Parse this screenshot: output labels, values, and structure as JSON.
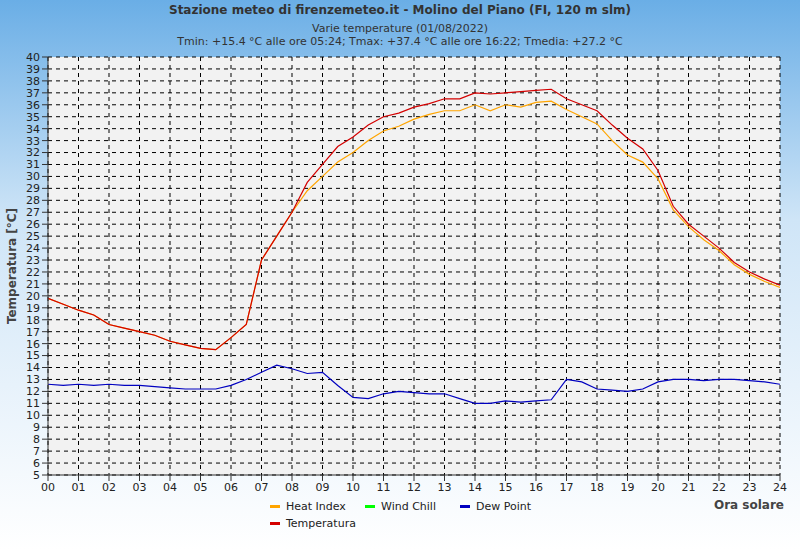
{
  "chart_data": {
    "type": "line",
    "title": "Stazione meteo di firenzemeteo.it - Molino del Piano (FI, 120 m slm)",
    "subtitle": [
      "Varie temperature (01/08/2022)",
      "Tmin: +15.4 °C alle ore 05:24; Tmax: +37.4 °C alle ore 16:22; Tmedia: +27.2 °C"
    ],
    "x_label": "Ora solare",
    "y_label": "Temperatura [°C]",
    "x": [
      0,
      0.5,
      1,
      1.5,
      2,
      2.5,
      3,
      3.5,
      4,
      4.5,
      5,
      5.5,
      6,
      6.5,
      7,
      7.5,
      8,
      8.5,
      9,
      9.5,
      10,
      10.5,
      11,
      11.5,
      12,
      12.5,
      13,
      13.5,
      14,
      14.5,
      15,
      15.5,
      16,
      16.5,
      17,
      17.5,
      18,
      18.5,
      19,
      19.5,
      20,
      20.5,
      21,
      21.5,
      22,
      22.5,
      23,
      23.5,
      24
    ],
    "series": [
      {
        "name": "Heat Index",
        "color": "#ffa500",
        "values": [
          19.8,
          19.3,
          18.8,
          18.4,
          17.6,
          17.3,
          17.0,
          16.7,
          16.2,
          15.9,
          15.6,
          15.5,
          16.5,
          17.6,
          23.0,
          25.0,
          27.0,
          28.8,
          30.0,
          31.2,
          32.0,
          33.0,
          33.8,
          34.2,
          34.8,
          35.2,
          35.5,
          35.5,
          36.0,
          35.5,
          36.0,
          35.8,
          36.2,
          36.3,
          35.6,
          35.0,
          34.4,
          33.0,
          31.8,
          31.2,
          29.8,
          27.2,
          25.8,
          24.7,
          23.8,
          22.6,
          21.8,
          21.2,
          20.7
        ]
      },
      {
        "name": "Wind Chill",
        "color": "#00ff00",
        "values": [
          null,
          null,
          null,
          null,
          null,
          null,
          null,
          null,
          null,
          null,
          null,
          null,
          null,
          null,
          null,
          null,
          null,
          null,
          null,
          null,
          null,
          null,
          null,
          null,
          null,
          null,
          null,
          null,
          null,
          null,
          null,
          null,
          null,
          null,
          null,
          null,
          null,
          null,
          null,
          null,
          null,
          null,
          null,
          null,
          null,
          null,
          null,
          null,
          null
        ]
      },
      {
        "name": "Dew Point",
        "color": "#0000c0",
        "values": [
          12.6,
          12.5,
          12.6,
          12.5,
          12.6,
          12.5,
          12.5,
          12.4,
          12.3,
          12.2,
          12.2,
          12.2,
          12.5,
          13.0,
          13.6,
          14.2,
          13.9,
          13.5,
          13.6,
          12.5,
          11.5,
          11.4,
          11.8,
          12.0,
          11.9,
          11.8,
          11.8,
          11.4,
          11.0,
          11.0,
          11.2,
          11.1,
          11.2,
          11.3,
          13.0,
          12.8,
          12.2,
          12.1,
          12.0,
          12.2,
          12.8,
          13.0,
          13.0,
          12.9,
          13.0,
          13.0,
          12.9,
          12.8,
          12.6
        ]
      },
      {
        "name": "Temperatura",
        "color": "#d40000",
        "values": [
          19.8,
          19.3,
          18.8,
          18.4,
          17.6,
          17.3,
          17.0,
          16.7,
          16.2,
          15.9,
          15.6,
          15.5,
          16.5,
          17.6,
          23.0,
          25.0,
          27.0,
          29.5,
          31.0,
          32.5,
          33.3,
          34.3,
          35.0,
          35.3,
          35.8,
          36.1,
          36.5,
          36.5,
          37.0,
          36.9,
          37.0,
          37.1,
          37.2,
          37.3,
          36.5,
          36.0,
          35.5,
          34.3,
          33.2,
          32.3,
          30.5,
          27.5,
          26.0,
          25.0,
          24.0,
          22.8,
          22.0,
          21.4,
          20.9
        ]
      }
    ],
    "xlim": [
      0,
      24
    ],
    "xticks": [
      {
        "value": 0,
        "label": "00"
      },
      {
        "value": 1,
        "label": "01"
      },
      {
        "value": 2,
        "label": "02"
      },
      {
        "value": 3,
        "label": "03"
      },
      {
        "value": 4,
        "label": "04"
      },
      {
        "value": 5,
        "label": "05"
      },
      {
        "value": 6,
        "label": "06"
      },
      {
        "value": 7,
        "label": "07"
      },
      {
        "value": 8,
        "label": "08"
      },
      {
        "value": 9,
        "label": "09"
      },
      10,
      11,
      12,
      13,
      14,
      15,
      16,
      17,
      18,
      19,
      20,
      21,
      22,
      23,
      24
    ],
    "ylim": [
      5,
      40
    ],
    "yticks": [
      5,
      6,
      7,
      8,
      9,
      10,
      11,
      12,
      13,
      14,
      15,
      16,
      17,
      18,
      19,
      20,
      21,
      22,
      23,
      24,
      25,
      26,
      27,
      28,
      29,
      30,
      31,
      32,
      33,
      34,
      35,
      36,
      37,
      38,
      39,
      40
    ],
    "grid": true
  }
}
